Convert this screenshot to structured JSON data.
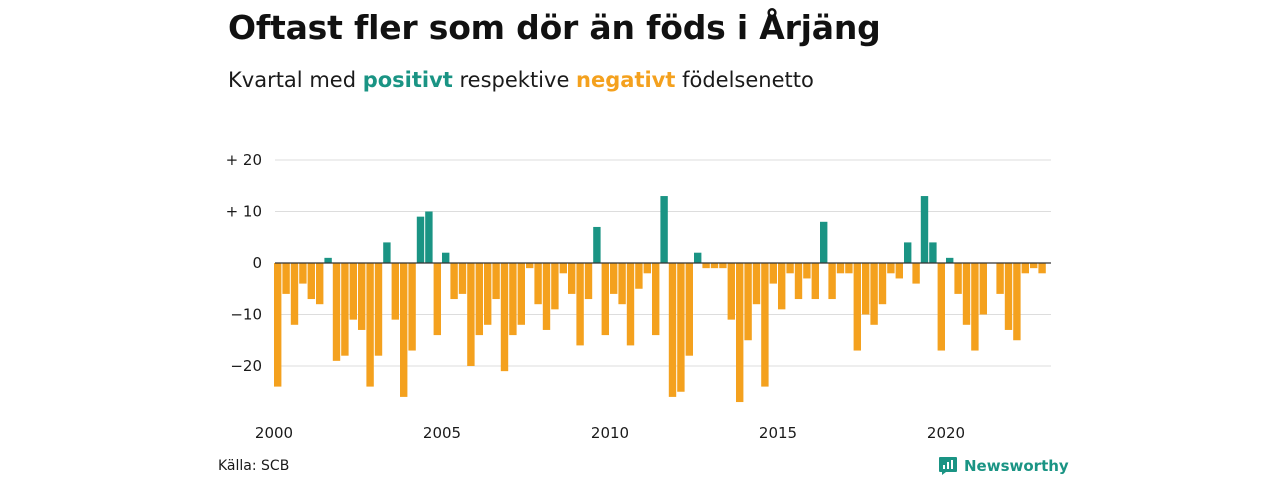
{
  "title": "Oftast fler som dör än föds i Årjäng",
  "subtitle": {
    "prefix": "Kvartal med ",
    "positive_word": "positivt",
    "middle": " respektive ",
    "negative_word": "negativt",
    "suffix": " födelsenetto"
  },
  "source": "Källa: SCB",
  "brand": {
    "name": "Newsworthy",
    "icon": "newsworthy-logo-icon"
  },
  "colors": {
    "positive": "#1a9484",
    "negative": "#f4a11e",
    "grid": "#dddddd",
    "zero": "#333333"
  },
  "chart_data": {
    "type": "bar",
    "title": "Oftast fler som dör än föds i Årjäng",
    "subtitle": "Kvartal med positivt respektive negativt födelsenetto",
    "x_start": "2000-Q1",
    "x_ticks": [
      "2000",
      "2005",
      "2010",
      "2015",
      "2020"
    ],
    "y_ticks": [
      {
        "value": 20,
        "label": "+ 20"
      },
      {
        "value": 10,
        "label": "+ 10"
      },
      {
        "value": 0,
        "label": "0"
      },
      {
        "value": -10,
        "label": "−10"
      },
      {
        "value": -20,
        "label": "−20"
      }
    ],
    "ylim": [
      -28,
      20
    ],
    "grid": true,
    "legend": "none",
    "values": [
      -24,
      -6,
      -12,
      -4,
      -7,
      -8,
      1,
      -19,
      -18,
      -11,
      -13,
      -24,
      -18,
      4,
      -11,
      -26,
      -17,
      9,
      10,
      -14,
      2,
      -7,
      -6,
      -20,
      -14,
      -12,
      -7,
      -21,
      -14,
      -12,
      -1,
      -8,
      -13,
      -9,
      -2,
      -6,
      -16,
      -7,
      7,
      -14,
      -6,
      -8,
      -16,
      -5,
      -2,
      -14,
      13,
      -26,
      -25,
      -18,
      2,
      -1,
      -1,
      -1,
      -11,
      -27,
      -15,
      -8,
      -24,
      -4,
      -9,
      -2,
      -7,
      -3,
      -7,
      8,
      -7,
      -2,
      -2,
      -17,
      -10,
      -12,
      -8,
      -2,
      -3,
      4,
      -4,
      13,
      4,
      -17,
      1,
      -6,
      -12,
      -17,
      -10,
      0,
      -6,
      -13,
      -15,
      -2,
      -1,
      -2
    ]
  }
}
